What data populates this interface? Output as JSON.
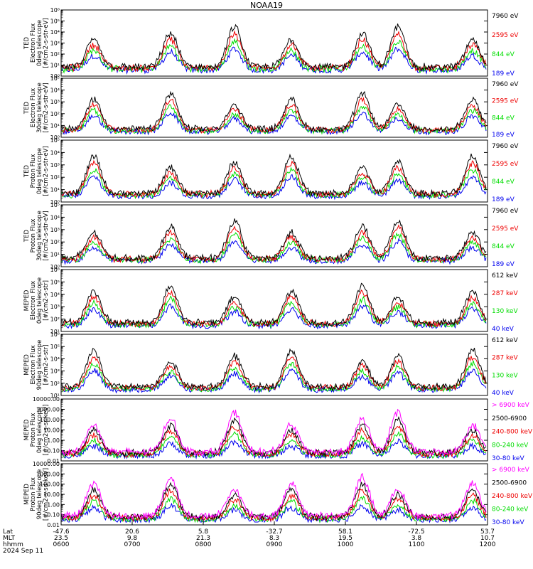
{
  "title": "NOAA19",
  "colors": {
    "black": "#000000",
    "red": "#ee0000",
    "green": "#00dd00",
    "blue": "#0000ee",
    "magenta": "#ff00ff"
  },
  "chart_data": [
    {
      "type": "line",
      "ylabel": [
        "TED",
        "Electron Flux",
        "0deg telescope",
        "[#/cm2-s-str-eV]"
      ],
      "yscale": "log",
      "ylim": [
        1,
        1000000
      ],
      "yticks": [
        "10⁰",
        "10¹",
        "10²",
        "10³",
        "10⁴",
        "10⁵",
        "10⁶"
      ],
      "series": [
        {
          "name": "7960 eV",
          "color": "black"
        },
        {
          "name": "2595 eV",
          "color": "red"
        },
        {
          "name": "844 eV",
          "color": "green"
        },
        {
          "name": "189 eV",
          "color": "blue"
        }
      ]
    },
    {
      "type": "line",
      "ylabel": [
        "TED",
        "Electron Flux",
        "30deg telescope",
        "[#/cm2-s-str-eV]"
      ],
      "yscale": "log",
      "ylim": [
        1,
        100000
      ],
      "yticks": [
        "10⁰",
        "10¹",
        "10²",
        "10³",
        "10⁴",
        "10⁵"
      ],
      "series": [
        {
          "name": "7960 eV",
          "color": "black"
        },
        {
          "name": "2595 eV",
          "color": "red"
        },
        {
          "name": "844 eV",
          "color": "green"
        },
        {
          "name": "189 eV",
          "color": "blue"
        }
      ]
    },
    {
      "type": "line",
      "ylabel": [
        "TED",
        "Proton Flux",
        "0deg telescope",
        "[#/cm2-s-str-eV]"
      ],
      "yscale": "log",
      "ylim": [
        1,
        100000
      ],
      "yticks": [
        "10⁰",
        "10¹",
        "10²",
        "10³",
        "10⁴",
        "10⁵"
      ],
      "series": [
        {
          "name": "7960 eV",
          "color": "black"
        },
        {
          "name": "2595 eV",
          "color": "red"
        },
        {
          "name": "844 eV",
          "color": "green"
        },
        {
          "name": "189 eV",
          "color": "blue"
        }
      ]
    },
    {
      "type": "line",
      "ylabel": [
        "TED",
        "Proton Flux",
        "30deg telescope",
        "[#/cm2-s-str-eV]"
      ],
      "yscale": "log",
      "ylim": [
        1,
        100000
      ],
      "yticks": [
        "10⁰",
        "10¹",
        "10²",
        "10³",
        "10⁴",
        "10⁵"
      ],
      "series": [
        {
          "name": "7960 eV",
          "color": "black"
        },
        {
          "name": "2595 eV",
          "color": "red"
        },
        {
          "name": "844 eV",
          "color": "green"
        },
        {
          "name": "189 eV",
          "color": "blue"
        }
      ]
    },
    {
      "type": "line",
      "ylabel": [
        "MEPED",
        "Electron Flux",
        "0deg telescope",
        "[#/cm2-s-str]"
      ],
      "yscale": "log",
      "ylim": [
        10,
        1000000
      ],
      "yticks": [
        "10¹",
        "10²",
        "10³",
        "10⁴",
        "10⁵",
        "10⁶"
      ],
      "series": [
        {
          "name": "612 keV",
          "color": "black"
        },
        {
          "name": "287 keV",
          "color": "red"
        },
        {
          "name": "130 keV",
          "color": "green"
        },
        {
          "name": "40 keV",
          "color": "blue"
        }
      ]
    },
    {
      "type": "line",
      "ylabel": [
        "MEPED",
        "Electron Flux",
        "90deg telescope",
        "[#/cm2-s-str]"
      ],
      "yscale": "log",
      "ylim": [
        10,
        1000000
      ],
      "yticks": [
        "10¹",
        "10²",
        "10³",
        "10⁴",
        "10⁵",
        "10⁶"
      ],
      "series": [
        {
          "name": "612 keV",
          "color": "black"
        },
        {
          "name": "287 keV",
          "color": "red"
        },
        {
          "name": "130 keV",
          "color": "green"
        },
        {
          "name": "40 keV",
          "color": "blue"
        }
      ]
    },
    {
      "type": "line",
      "ylabel": [
        "MEPED",
        "Proton Flux",
        "0deg telescope",
        "[#/cm2-s-sr-keV]"
      ],
      "yscale": "log",
      "ylim": [
        0.01,
        10000
      ],
      "yticks": [
        "0.01",
        "0.10",
        "1.00",
        "10.00",
        "100.00",
        "1000.00",
        "10000.00"
      ],
      "series": [
        {
          "name": "> 6900 keV",
          "color": "magenta"
        },
        {
          "name": "2500-6900",
          "color": "black"
        },
        {
          "name": "240-800 keV",
          "color": "red"
        },
        {
          "name": "80-240 keV",
          "color": "green"
        },
        {
          "name": "30-80 keV",
          "color": "blue"
        }
      ]
    },
    {
      "type": "line",
      "ylabel": [
        "MEPED",
        "Proton Flux",
        "90deg telescope",
        "[#/cm2-s-sd-keV]"
      ],
      "yscale": "log",
      "ylim": [
        0.01,
        10000
      ],
      "yticks": [
        "0.01",
        "0.10",
        "1.00",
        "10.00",
        "100.00",
        "1000.00",
        "10000.00"
      ],
      "series": [
        {
          "name": "> 6900 keV",
          "color": "magenta"
        },
        {
          "name": "2500-6900",
          "color": "black"
        },
        {
          "name": "240-800 keV",
          "color": "red"
        },
        {
          "name": "80-240 keV",
          "color": "green"
        },
        {
          "name": "30-80 keV",
          "color": "blue"
        }
      ]
    }
  ],
  "x_axis": {
    "row_labels": [
      "Lat",
      "MLT",
      "hhmm",
      "2024 Sep 11"
    ],
    "ticks": [
      {
        "lat": "-47.6",
        "mlt": "23.5",
        "hhmm": "0600"
      },
      {
        "lat": "20.6",
        "mlt": "9.8",
        "hhmm": "0700"
      },
      {
        "lat": "5.8",
        "mlt": "21.3",
        "hhmm": "0800"
      },
      {
        "lat": "-32.7",
        "mlt": "8.3",
        "hhmm": "0900"
      },
      {
        "lat": "58.1",
        "mlt": "19.5",
        "hhmm": "1000"
      },
      {
        "lat": "-72.5",
        "mlt": "3.8",
        "hhmm": "1100"
      },
      {
        "lat": "53.7",
        "mlt": "10.7",
        "hhmm": "1200"
      }
    ]
  }
}
